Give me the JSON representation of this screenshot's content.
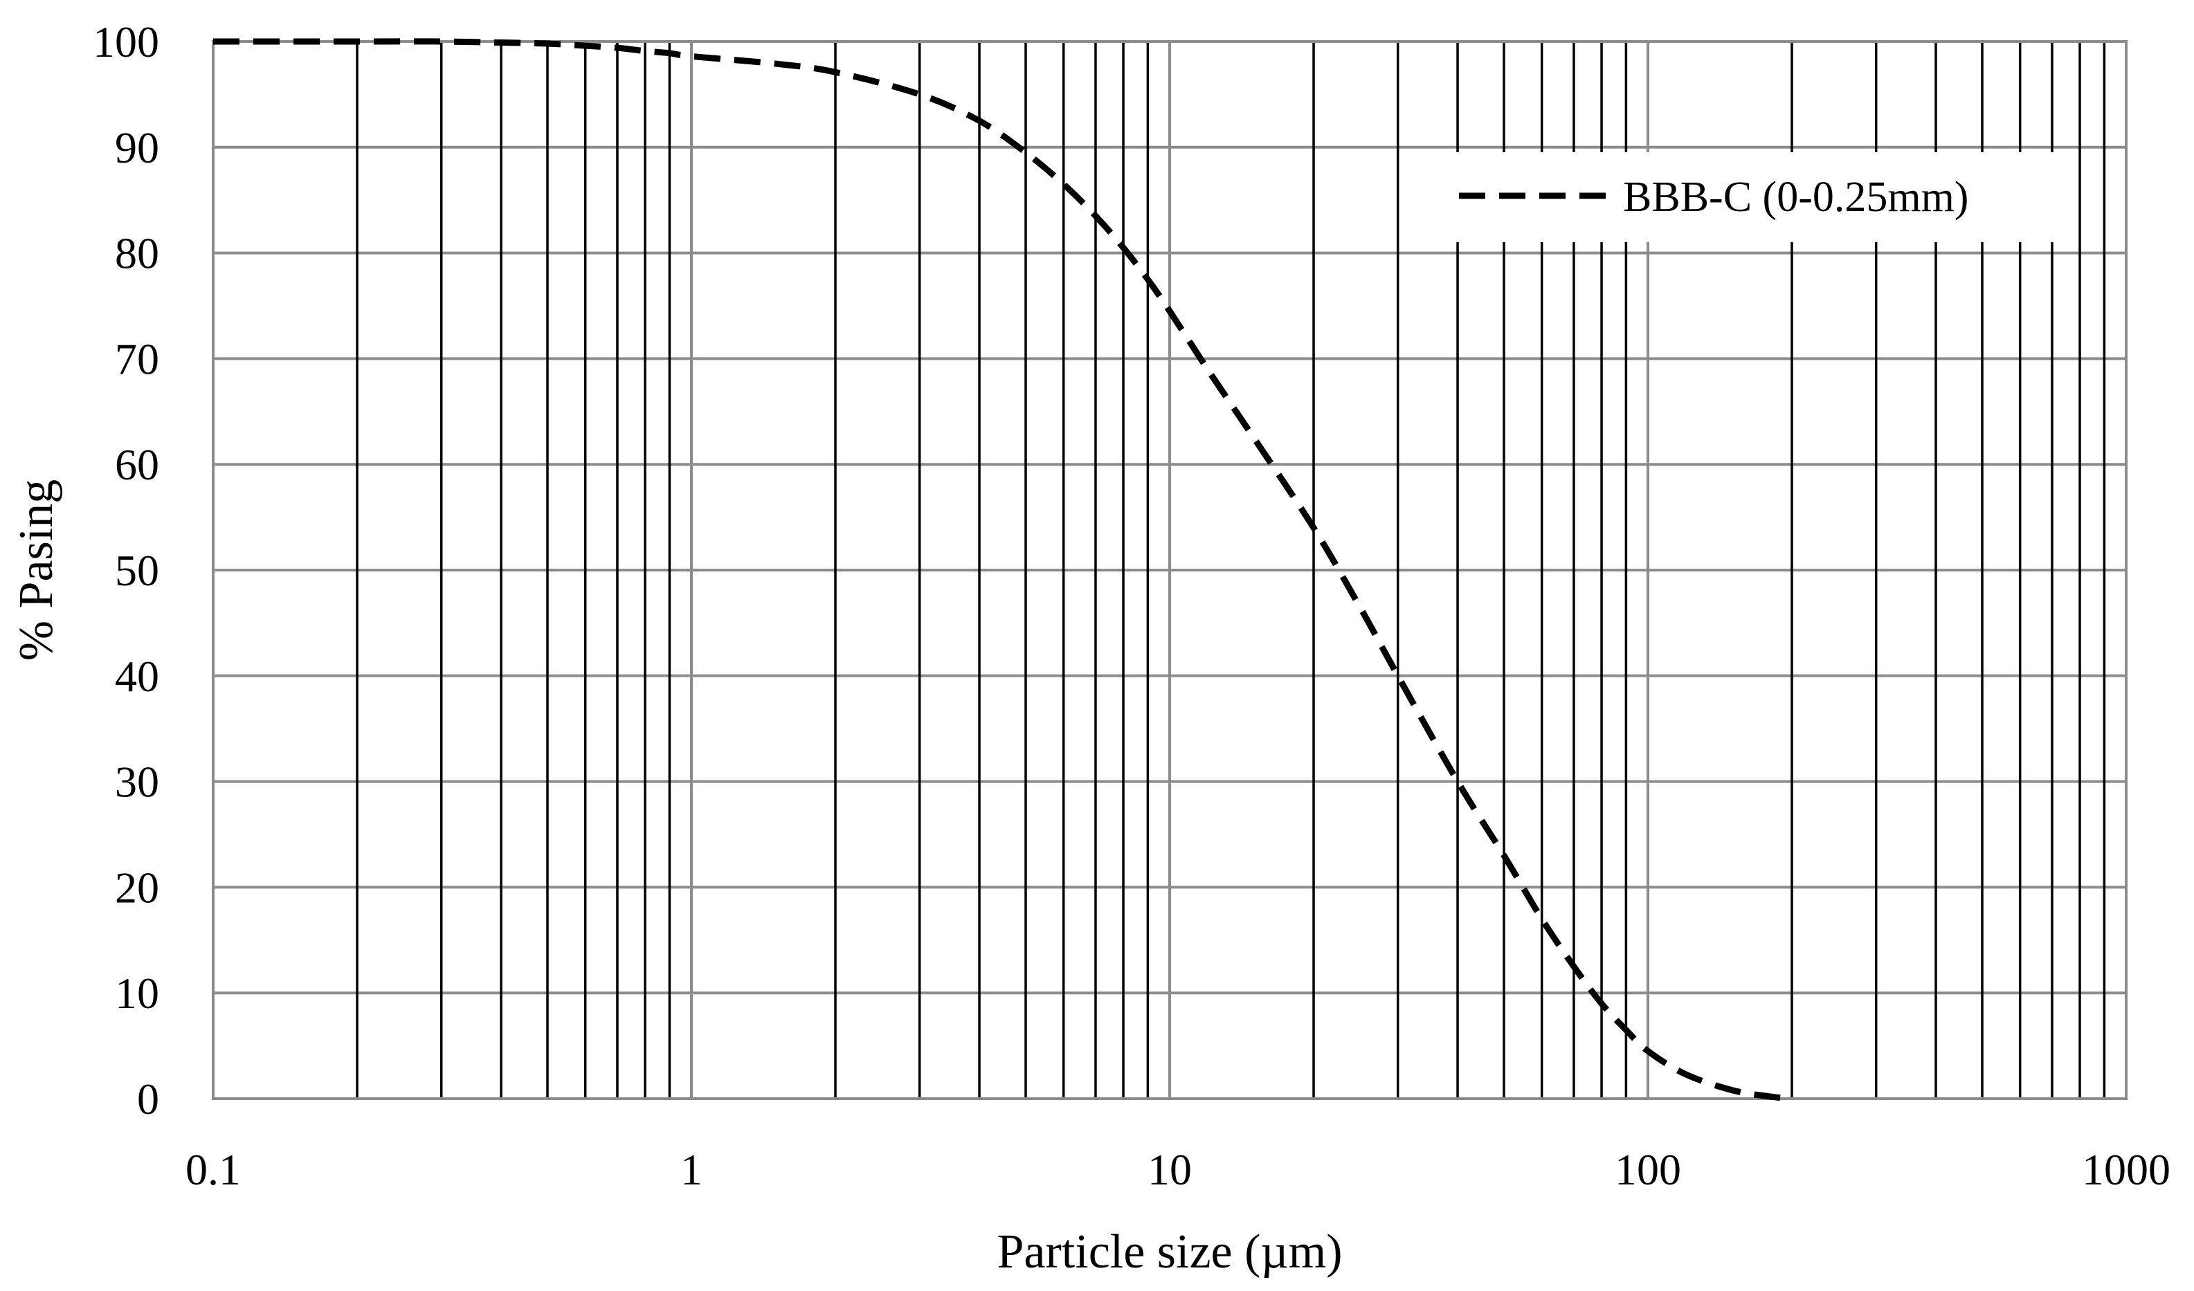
{
  "chart_data": {
    "type": "line",
    "xscale": "log",
    "xlim": [
      0.1,
      1000
    ],
    "ylim": [
      0,
      100
    ],
    "xlabel": "Particle size (µm)",
    "ylabel": "% Pasing",
    "x_ticks": [
      "0.1",
      "1",
      "10",
      "100",
      "1000"
    ],
    "y_ticks": [
      "0",
      "10",
      "20",
      "30",
      "40",
      "50",
      "60",
      "70",
      "80",
      "90",
      "100"
    ],
    "grid": "major horizontal and log minor vertical",
    "legend": {
      "position": "top-right"
    },
    "series": [
      {
        "name": "BBB-C (0-0.25mm)",
        "style": "dashed",
        "color": "#000000",
        "x": [
          0.1,
          0.2,
          0.3,
          0.4,
          0.5,
          0.6,
          0.7,
          0.8,
          0.9,
          1,
          1.5,
          2,
          3,
          4,
          5,
          6,
          7,
          8,
          9,
          10,
          12,
          15,
          20,
          25,
          30,
          40,
          50,
          60,
          70,
          80,
          90,
          100,
          120,
          150,
          180,
          200
        ],
        "y": [
          100,
          100,
          100,
          99.9,
          99.8,
          99.6,
          99.4,
          99.1,
          98.9,
          98.6,
          97.9,
          97.1,
          95,
          92.5,
          89.5,
          86.5,
          83.5,
          80.5,
          77.5,
          74.5,
          69,
          62.5,
          54,
          46.5,
          40,
          30,
          23,
          17,
          12.5,
          9,
          6.5,
          4.5,
          2.3,
          0.8,
          0.2,
          0
        ]
      }
    ]
  }
}
